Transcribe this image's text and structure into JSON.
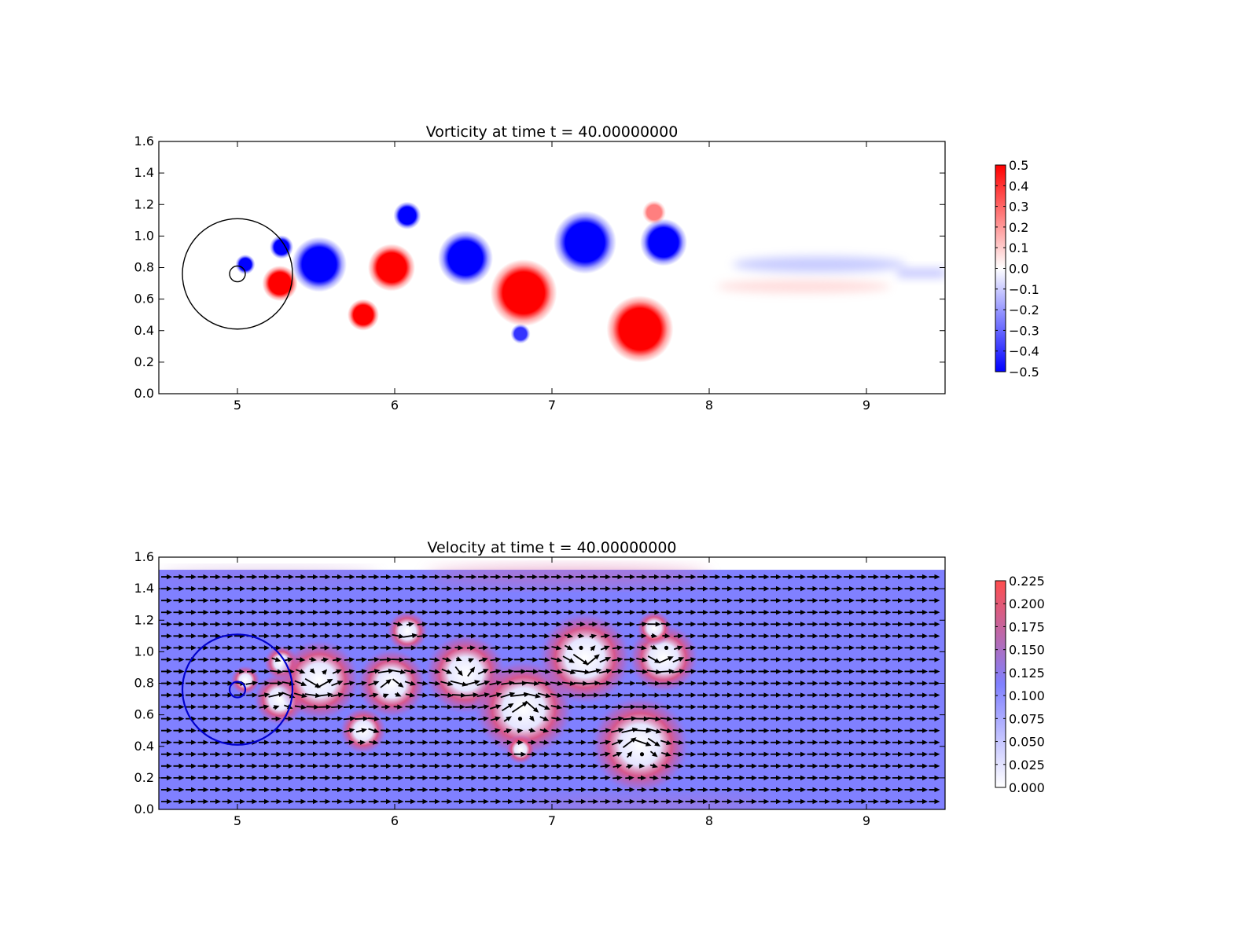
{
  "chart_data": [
    {
      "type": "heatmap",
      "title": "Vorticity at time t =     40.00000000",
      "xlabel": "",
      "ylabel": "",
      "xlim": [
        4.5,
        9.5
      ],
      "ylim": [
        0.0,
        1.6
      ],
      "x_ticks": [
        "5",
        "6",
        "7",
        "8",
        "9"
      ],
      "y_ticks": [
        "0.0",
        "0.2",
        "0.4",
        "0.6",
        "0.8",
        "1.0",
        "1.2",
        "1.4",
        "1.6"
      ],
      "colorbar": {
        "range": [
          -0.5,
          0.5
        ],
        "ticks": [
          "0.5",
          "0.4",
          "0.3",
          "0.2",
          "0.1",
          "0.0",
          "−0.1",
          "−0.2",
          "−0.3",
          "−0.4",
          "−0.5"
        ],
        "colors": [
          "#0000ff",
          "#ffffff",
          "#ff0000"
        ]
      },
      "circles": [
        {
          "cx": 5.0,
          "cy": 0.76,
          "r": 0.35,
          "color": "#000000"
        },
        {
          "cx": 5.0,
          "cy": 0.76,
          "r": 0.05,
          "color": "#000000"
        }
      ],
      "vortices": [
        {
          "x": 5.05,
          "y": 0.82,
          "r": 0.05,
          "w": -0.5
        },
        {
          "x": 5.27,
          "y": 0.7,
          "r": 0.09,
          "w": 0.5
        },
        {
          "x": 5.28,
          "y": 0.93,
          "r": 0.06,
          "w": -0.5
        },
        {
          "x": 5.52,
          "y": 0.82,
          "r": 0.14,
          "w": -0.5
        },
        {
          "x": 5.8,
          "y": 0.5,
          "r": 0.08,
          "w": 0.5
        },
        {
          "x": 5.98,
          "y": 0.8,
          "r": 0.12,
          "w": 0.5
        },
        {
          "x": 6.08,
          "y": 1.13,
          "r": 0.07,
          "w": -0.5
        },
        {
          "x": 6.45,
          "y": 0.86,
          "r": 0.14,
          "w": -0.5
        },
        {
          "x": 6.82,
          "y": 0.64,
          "r": 0.17,
          "w": 0.5
        },
        {
          "x": 6.8,
          "y": 0.38,
          "r": 0.05,
          "w": -0.4
        },
        {
          "x": 7.21,
          "y": 0.96,
          "r": 0.16,
          "w": -0.5
        },
        {
          "x": 7.56,
          "y": 0.41,
          "r": 0.17,
          "w": 0.5
        },
        {
          "x": 7.71,
          "y": 0.96,
          "r": 0.12,
          "w": -0.5
        },
        {
          "x": 7.65,
          "y": 1.15,
          "r": 0.06,
          "w": 0.25
        }
      ]
    },
    {
      "type": "heatmap",
      "title": "Velocity at time t =     40.00000000",
      "xlabel": "",
      "ylabel": "",
      "xlim": [
        4.5,
        9.5
      ],
      "ylim": [
        0.0,
        1.6
      ],
      "x_ticks": [
        "5",
        "6",
        "7",
        "8",
        "9"
      ],
      "y_ticks": [
        "0.0",
        "0.2",
        "0.4",
        "0.6",
        "0.8",
        "1.0",
        "1.2",
        "1.4",
        "1.6"
      ],
      "data_top": 1.52,
      "colorbar": {
        "range": [
          0.0,
          0.225
        ],
        "ticks": [
          "0.225",
          "0.200",
          "0.175",
          "0.150",
          "0.125",
          "0.100",
          "0.075",
          "0.050",
          "0.025",
          "0.000"
        ],
        "colors": [
          "#ffffff",
          "#8080ff",
          "#ff4d4d"
        ]
      },
      "circles": [
        {
          "cx": 5.0,
          "cy": 0.76,
          "r": 0.35,
          "color": "#0000cc"
        },
        {
          "cx": 5.0,
          "cy": 0.76,
          "r": 0.05,
          "color": "#0000cc"
        }
      ],
      "base_speed": 0.1,
      "quiver": {
        "x0": 4.55,
        "dx": 0.0775,
        "y0": 0.05,
        "dy": 0.075,
        "arrow_color": "#000000"
      }
    }
  ]
}
